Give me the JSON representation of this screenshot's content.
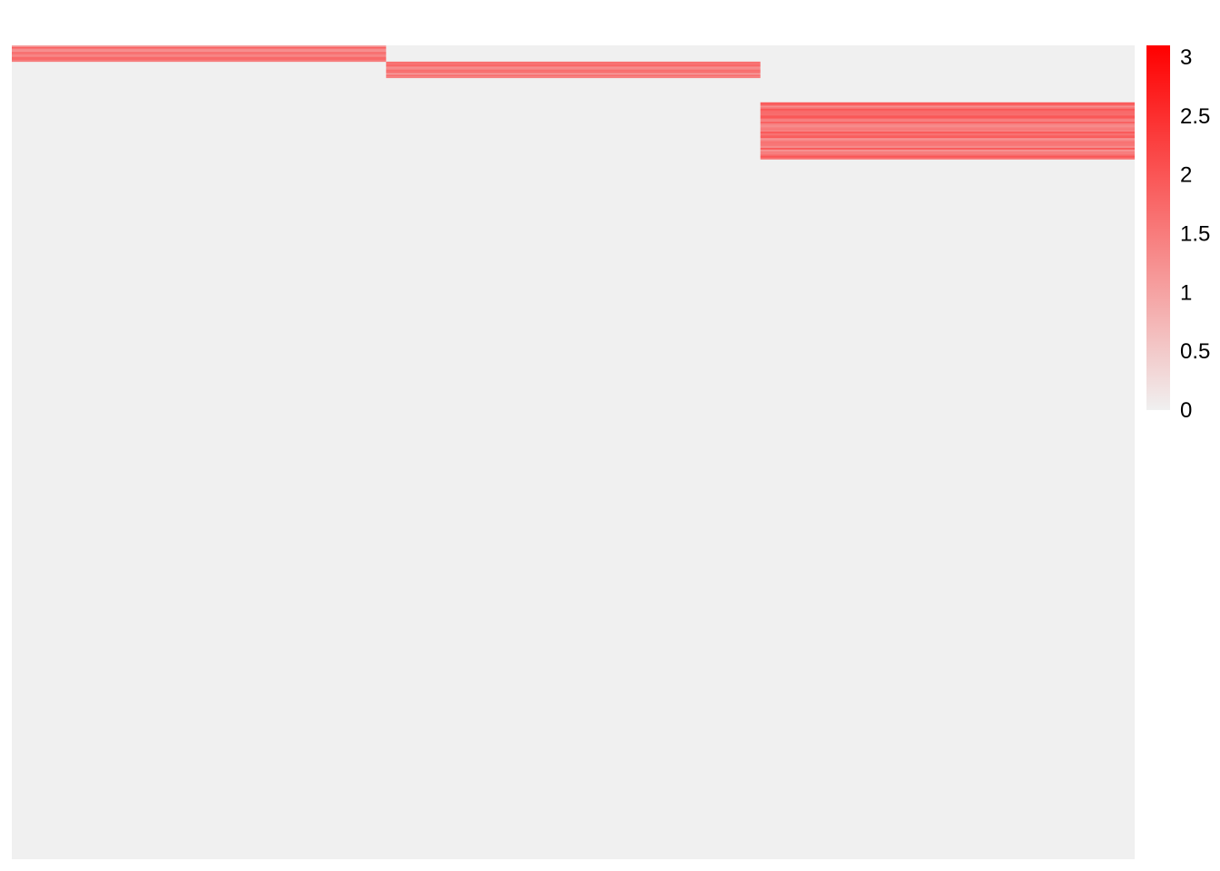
{
  "chart_data": {
    "type": "heatmap",
    "title": "",
    "xlabel": "",
    "ylabel": "",
    "columns": 3,
    "rows": 500,
    "background_value": 0,
    "blocks": [
      {
        "column": 1,
        "row_start": 1,
        "row_end": 10,
        "mean_value": 1.5
      },
      {
        "column": 2,
        "row_start": 11,
        "row_end": 20,
        "mean_value": 1.5
      },
      {
        "column": 3,
        "row_start": 36,
        "row_end": 70,
        "mean_value": 1.6
      }
    ],
    "color_scale": {
      "min": 0,
      "max": 3.1,
      "low_color": "#f0f0f0",
      "high_color": "#ff0000",
      "ticks": [
        {
          "value": 0,
          "label": "0"
        },
        {
          "value": 0.5,
          "label": "0.5"
        },
        {
          "value": 1,
          "label": "1"
        },
        {
          "value": 1.5,
          "label": "1.5"
        },
        {
          "value": 2,
          "label": "2"
        },
        {
          "value": 2.5,
          "label": "2.5"
        },
        {
          "value": 3,
          "label": "3"
        }
      ]
    },
    "legend": "right",
    "grid": false
  }
}
